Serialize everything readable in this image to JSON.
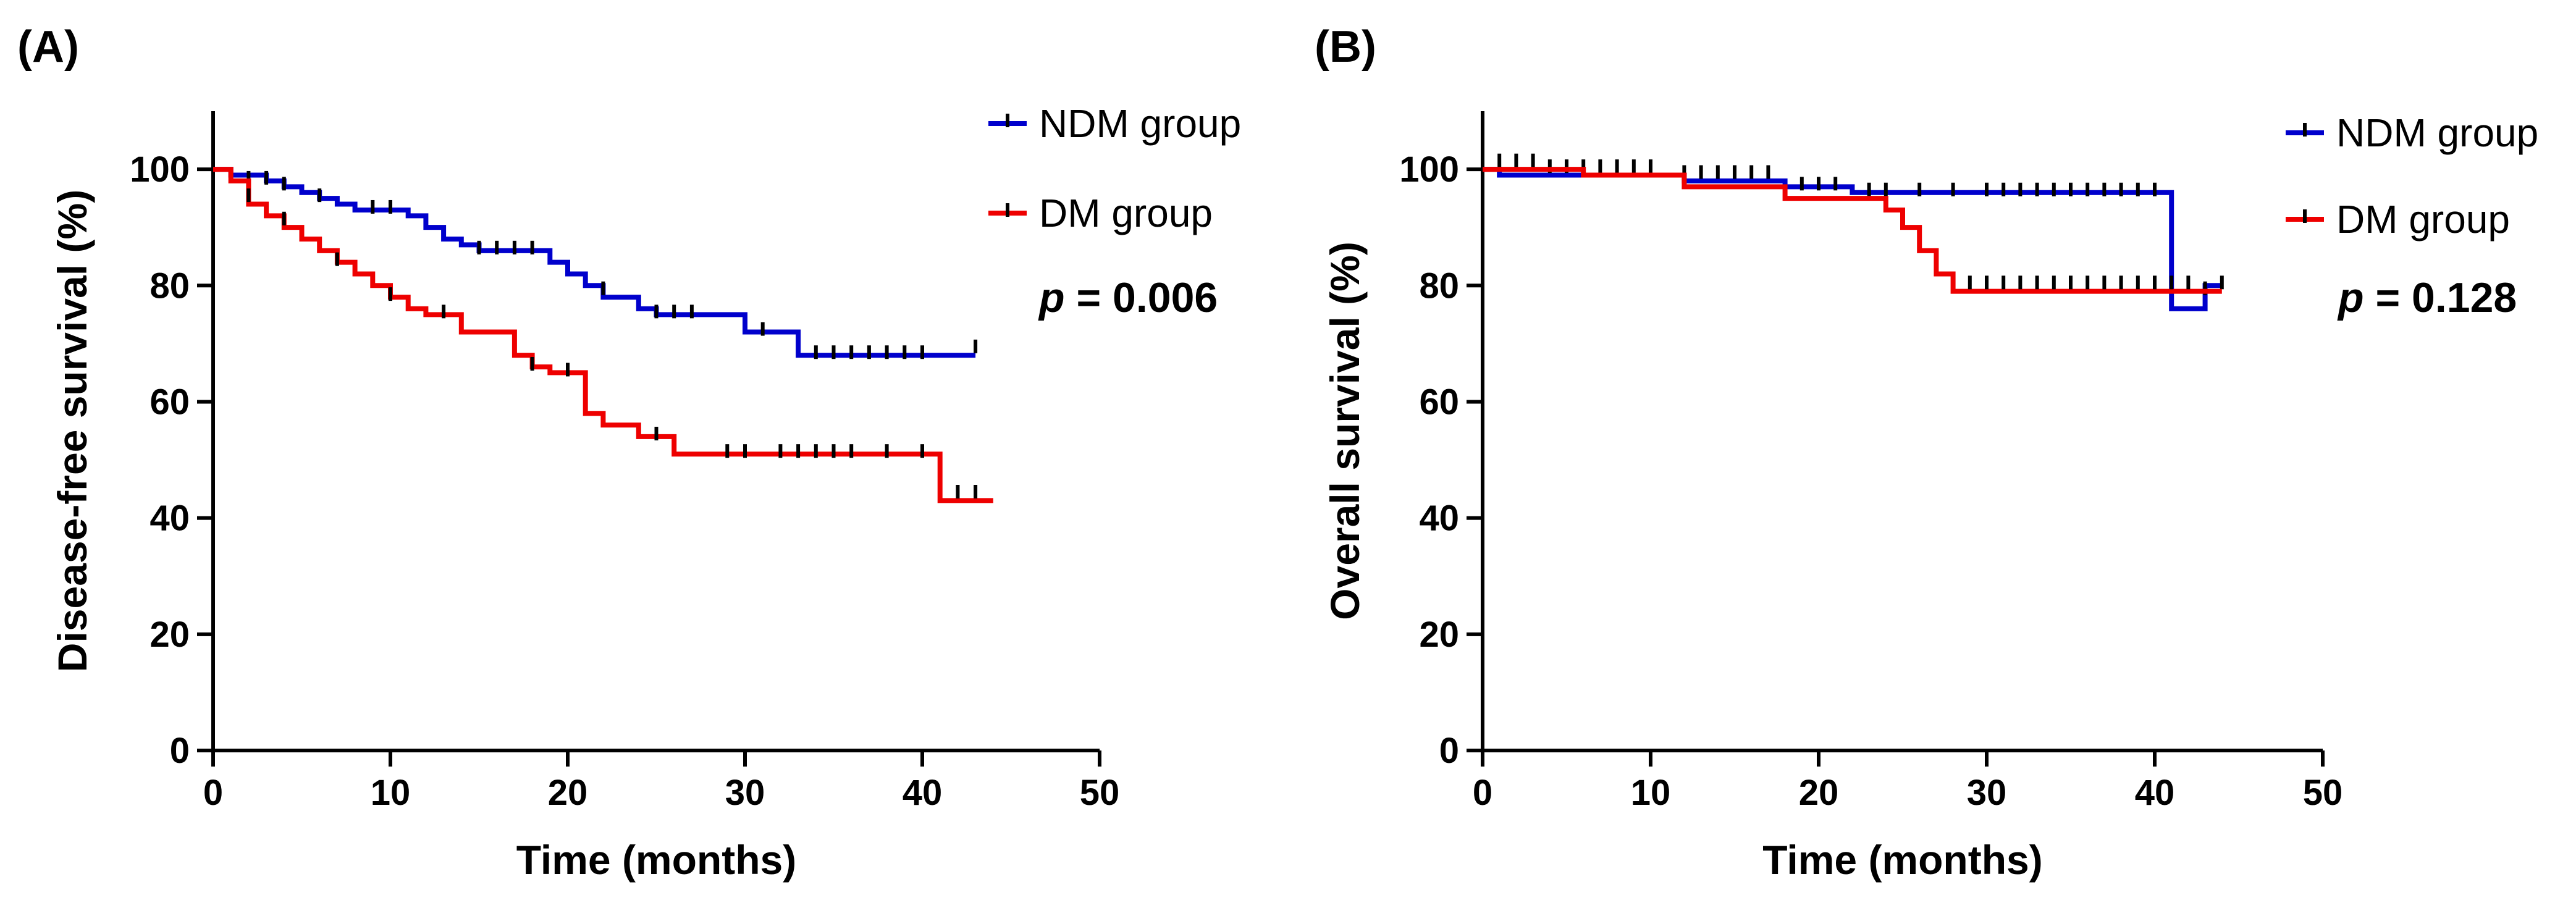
{
  "chart_data": [
    {
      "panel_label": "(A)",
      "type": "line",
      "subtype": "kaplan-meier",
      "title": "",
      "xlabel": "Time (months)",
      "ylabel": "Disease-free survival (%)",
      "xlim": [
        0,
        50
      ],
      "ylim": [
        0,
        110
      ],
      "xticks": [
        0,
        10,
        20,
        30,
        40,
        50
      ],
      "yticks": [
        0,
        20,
        40,
        60,
        80,
        100
      ],
      "legend_position": "top-right",
      "annotation": {
        "prefix": "p",
        "text": " = 0.006"
      },
      "series": [
        {
          "name": "NDM group",
          "color": "#0000cc",
          "steps": [
            [
              0,
              100
            ],
            [
              1,
              99
            ],
            [
              3,
              98
            ],
            [
              4,
              97
            ],
            [
              5,
              96
            ],
            [
              6,
              95
            ],
            [
              7,
              94
            ],
            [
              8,
              93
            ],
            [
              11,
              92
            ],
            [
              12,
              90
            ],
            [
              13,
              88
            ],
            [
              14,
              87
            ],
            [
              15,
              86
            ],
            [
              19,
              84
            ],
            [
              20,
              82
            ],
            [
              21,
              80
            ],
            [
              22,
              78
            ],
            [
              24,
              76
            ],
            [
              25,
              75
            ],
            [
              30,
              72
            ],
            [
              33,
              68
            ],
            [
              43,
              68
            ]
          ],
          "censored": [
            [
              2,
              98
            ],
            [
              3,
              98
            ],
            [
              4,
              97
            ],
            [
              6,
              95
            ],
            [
              9,
              93
            ],
            [
              10,
              93
            ],
            [
              15,
              86
            ],
            [
              16,
              86
            ],
            [
              17,
              86
            ],
            [
              18,
              86
            ],
            [
              22,
              79
            ],
            [
              25,
              75
            ],
            [
              26,
              75
            ],
            [
              27,
              75
            ],
            [
              31,
              72
            ],
            [
              34,
              68
            ],
            [
              35,
              68
            ],
            [
              36,
              68
            ],
            [
              37,
              68
            ],
            [
              38,
              68
            ],
            [
              39,
              68
            ],
            [
              40,
              68
            ],
            [
              43,
              69
            ]
          ]
        },
        {
          "name": "DM group",
          "color": "#ee0000",
          "steps": [
            [
              0,
              100
            ],
            [
              1,
              98
            ],
            [
              2,
              94
            ],
            [
              3,
              92
            ],
            [
              4,
              90
            ],
            [
              5,
              88
            ],
            [
              6,
              86
            ],
            [
              7,
              84
            ],
            [
              8,
              82
            ],
            [
              9,
              80
            ],
            [
              10,
              78
            ],
            [
              11,
              76
            ],
            [
              12,
              75
            ],
            [
              14,
              72
            ],
            [
              17,
              68
            ],
            [
              18,
              66
            ],
            [
              19,
              65
            ],
            [
              21,
              58
            ],
            [
              22,
              56
            ],
            [
              24,
              54
            ],
            [
              26,
              51
            ],
            [
              41,
              43
            ],
            [
              44,
              43
            ]
          ],
          "censored": [
            [
              2,
              95
            ],
            [
              4,
              91
            ],
            [
              7,
              84
            ],
            [
              10,
              78
            ],
            [
              13,
              75
            ],
            [
              18,
              66
            ],
            [
              20,
              65
            ],
            [
              25,
              54
            ],
            [
              29,
              51
            ],
            [
              30,
              51
            ],
            [
              32,
              51
            ],
            [
              33,
              51
            ],
            [
              34,
              51
            ],
            [
              35,
              51
            ],
            [
              36,
              51
            ],
            [
              38,
              51
            ],
            [
              40,
              51
            ],
            [
              42,
              44
            ],
            [
              43,
              44
            ]
          ]
        }
      ]
    },
    {
      "panel_label": "(B)",
      "type": "line",
      "subtype": "kaplan-meier",
      "title": "",
      "xlabel": "Time (months)",
      "ylabel": "Overall survival (%)",
      "xlim": [
        0,
        50
      ],
      "ylim": [
        0,
        110
      ],
      "xticks": [
        0,
        10,
        20,
        30,
        40,
        50
      ],
      "yticks": [
        0,
        20,
        40,
        60,
        80,
        100
      ],
      "legend_position": "top-right",
      "annotation": {
        "prefix": "p",
        "text": " = 0.128"
      },
      "series": [
        {
          "name": "NDM group",
          "color": "#0000cc",
          "steps": [
            [
              0,
              100
            ],
            [
              1,
              99
            ],
            [
              12,
              98
            ],
            [
              18,
              97
            ],
            [
              22,
              96
            ],
            [
              41,
              76
            ],
            [
              43,
              80
            ],
            [
              44,
              80
            ]
          ],
          "censored": [
            [
              1,
              101
            ],
            [
              2,
              101
            ],
            [
              3,
              101
            ],
            [
              4,
              100
            ],
            [
              5,
              100
            ],
            [
              6,
              100
            ],
            [
              7,
              100
            ],
            [
              8,
              100
            ],
            [
              9,
              100
            ],
            [
              10,
              100
            ],
            [
              12,
              99
            ],
            [
              13,
              99
            ],
            [
              14,
              99
            ],
            [
              15,
              99
            ],
            [
              16,
              99
            ],
            [
              17,
              99
            ],
            [
              19,
              97
            ],
            [
              20,
              97
            ],
            [
              21,
              97
            ],
            [
              23,
              96
            ],
            [
              24,
              96
            ],
            [
              26,
              96
            ],
            [
              28,
              96
            ],
            [
              30,
              96
            ],
            [
              31,
              96
            ],
            [
              32,
              96
            ],
            [
              33,
              96
            ],
            [
              34,
              96
            ],
            [
              35,
              96
            ],
            [
              36,
              96
            ],
            [
              37,
              96
            ],
            [
              38,
              96
            ],
            [
              39,
              96
            ],
            [
              40,
              96
            ],
            [
              43,
              79
            ],
            [
              44,
              80
            ]
          ]
        },
        {
          "name": "DM group",
          "color": "#ee0000",
          "steps": [
            [
              0,
              100
            ],
            [
              6,
              99
            ],
            [
              12,
              97
            ],
            [
              18,
              95
            ],
            [
              24,
              93
            ],
            [
              25,
              90
            ],
            [
              26,
              86
            ],
            [
              27,
              82
            ],
            [
              28,
              79
            ],
            [
              44,
              79
            ]
          ],
          "censored": [
            [
              29,
              80
            ],
            [
              30,
              80
            ],
            [
              31,
              80
            ],
            [
              32,
              80
            ],
            [
              33,
              80
            ],
            [
              34,
              80
            ],
            [
              35,
              80
            ],
            [
              36,
              80
            ],
            [
              37,
              80
            ],
            [
              38,
              80
            ],
            [
              39,
              80
            ],
            [
              40,
              80
            ],
            [
              41,
              80
            ],
            [
              42,
              80
            ]
          ]
        }
      ]
    }
  ]
}
